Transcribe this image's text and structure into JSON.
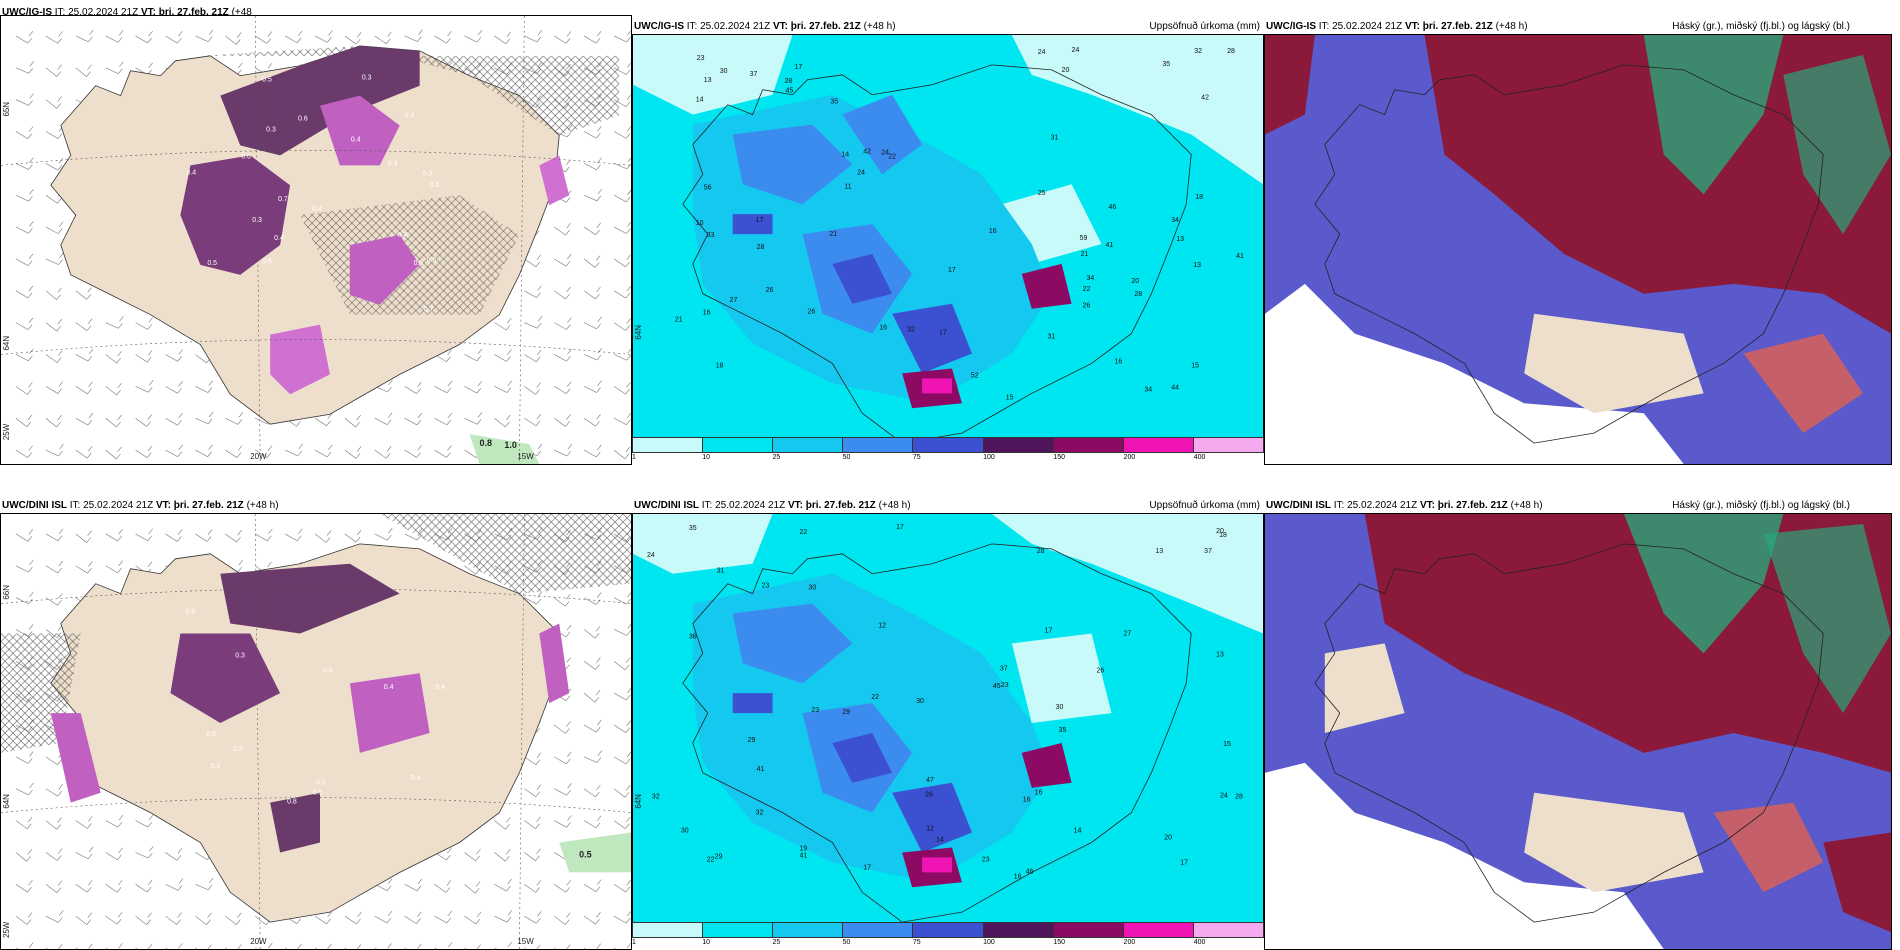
{
  "panels": {
    "r1c1": {
      "title_model": "UWC/IG-IS",
      "title_rest": "IT: 25.02.2024 21Z",
      "title_vt": "VT: þri. 27.feb. 21Z",
      "title_lead": "(+48",
      "title_lead2": "h)",
      "lat_label": "65N",
      "lat_label2": "64N",
      "lon_w": "25W",
      "lon1": "20W",
      "lon2": "15W",
      "values": [
        "0.8",
        "1.0"
      ]
    },
    "r1c2": {
      "title_model": "UWC/IG-IS",
      "title_rest": "IT: 25.02.2024 21Z",
      "title_vt": "VT: þri. 27.feb. 21Z",
      "title_lead": "(+48 h)",
      "title_right": "Uppsöfnuð úrkoma (mm)",
      "lat_label": "64N"
    },
    "r1c3": {
      "title_model": "UWC/IG-IS",
      "title_rest": "IT: 25.02.2024 21Z",
      "title_vt": "VT: þri. 27.feb. 21Z",
      "title_lead": "(+48 h)",
      "title_right": "Háský (gr.), miðský (fj.bl.) og lágský (bl.)"
    },
    "r2c1": {
      "title_model": "UWC/DINI ISL",
      "title_rest": "IT: 25.02.2024 21Z",
      "title_vt": "VT: þri. 27.feb. 21Z",
      "title_lead": "(+48 h)",
      "lat_label": "66N",
      "lat_label2": "64N",
      "lon_w": "25W",
      "lon1": "20W",
      "lon2": "15W",
      "values": [
        "0.5"
      ]
    },
    "r2c2": {
      "title_model": "UWC/DINI ISL",
      "title_rest": "IT: 25.02.2024 21Z",
      "title_vt": "VT: þri. 27.feb. 21Z",
      "title_lead": "(+48 h)",
      "title_right": "Uppsöfnuð úrkoma (mm)",
      "lat_label": "64N"
    },
    "r2c3": {
      "title_model": "UWC/DINI ISL",
      "title_rest": "IT: 25.02.2024 21Z",
      "title_vt": "VT: þri. 27.feb. 21Z",
      "title_lead": "(+48 h)",
      "title_right": "Háský (gr.), miðský (fj.bl.) og lágský (bl.)"
    }
  },
  "legend": {
    "ticks": [
      "1",
      "10",
      "25",
      "50",
      "75",
      "100",
      "150",
      "200",
      "400"
    ],
    "colors": [
      "#c8fafa",
      "#00e6f0",
      "#14c8f0",
      "#3c8cf0",
      "#3c50d2",
      "#50145a",
      "#8c0a64",
      "#f014b4",
      "#f5aaf0"
    ]
  },
  "precip_r1": [
    "21",
    "13",
    "18",
    "17",
    "22",
    "16",
    "16",
    "20",
    "14",
    "15",
    "14",
    "10",
    "13",
    "15",
    "16",
    "18",
    "17",
    "16",
    "24",
    "26",
    "28",
    "35",
    "11",
    "13",
    "24",
    "28",
    "34",
    "33",
    "45",
    "46",
    "52",
    "31",
    "24",
    "21",
    "34",
    "28",
    "22",
    "17",
    "17",
    "27",
    "42",
    "24",
    "44",
    "32",
    "20",
    "26",
    "21",
    "30",
    "25",
    "56",
    "41",
    "42",
    "32",
    "59",
    "26",
    "34",
    "31",
    "23",
    "28",
    "37",
    "41",
    "35"
  ],
  "precip_r2": [
    "17",
    "16",
    "19",
    "14",
    "22",
    "31",
    "23",
    "17",
    "17",
    "12",
    "13",
    "14",
    "22",
    "26",
    "28",
    "45",
    "36",
    "41",
    "29",
    "24",
    "16",
    "18",
    "37",
    "22",
    "27",
    "29",
    "32",
    "41",
    "35",
    "35",
    "30",
    "46",
    "47",
    "37",
    "32",
    "30",
    "24",
    "30",
    "17",
    "20",
    "23",
    "26",
    "28",
    "29",
    "30",
    "16",
    "15",
    "23",
    "23",
    "12",
    "20",
    "13"
  ],
  "cloud_values_r1": [
    "0.3",
    "0.3",
    "0.4",
    "0.5",
    "0.7",
    "0.6",
    "0.4",
    "0.3",
    "0.5",
    "0.4",
    "0.6",
    "0.4",
    "0.3",
    "0.6",
    "0.5",
    "0.4",
    "0.3",
    "0.4",
    "0.5",
    "0.6",
    "0.7"
  ],
  "cloud_values_r2": [
    "0.8",
    "0.5",
    "0.6",
    "0.9",
    "0.4",
    "0.3",
    "0.5",
    "0.6",
    "0.4",
    "0.3",
    "0.5",
    "0.4"
  ]
}
